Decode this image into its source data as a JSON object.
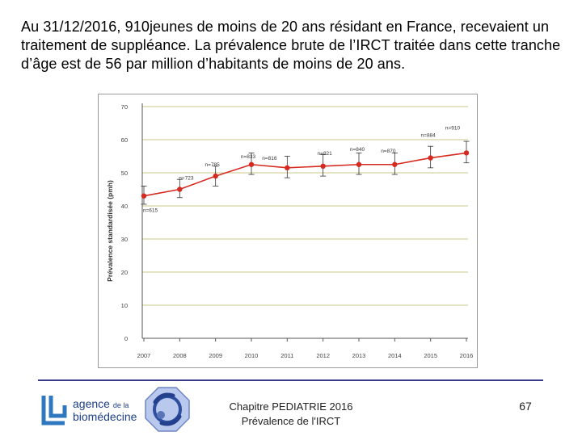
{
  "slide": {
    "headline": "Au 31/12/2016, 910jeunes de moins de 20 ans résidant en France, recevaient un traitement de suppléance. La prévalence brute de l’IRCT traitée dans cette tranche d’âge est de 56 par million d’habitants de moins de 20 ans."
  },
  "footer": {
    "chapter": "Chapitre PEDIATRIE 2016",
    "subtitle": "Prévalence de l'IRCT",
    "page_number": "67",
    "logo_line1": "agence",
    "logo_line1_small": "de la",
    "logo_line2": "biomédecine"
  },
  "colors": {
    "series": "#d62a20",
    "grid": "#c9c98a",
    "axis": "#555555",
    "rule": "#3a3a8a",
    "brand": "#1c3f8a"
  },
  "chart_data": {
    "type": "line",
    "title": "",
    "xlabel": "",
    "ylabel": "Prévalence standardisée (pmh)",
    "ylim": [
      0,
      70
    ],
    "yticks": [
      "0",
      "10",
      "20",
      "30",
      "40",
      "50",
      "60",
      "70"
    ],
    "grid": true,
    "categories": [
      "2007",
      "2008",
      "2009",
      "2010",
      "2011",
      "2012",
      "2013",
      "2014",
      "2015",
      "2016"
    ],
    "series": [
      {
        "name": "Prévalence standardisée",
        "values": [
          43,
          45,
          49,
          52.5,
          51.5,
          52,
          52.5,
          52.5,
          54.5,
          56
        ],
        "error_low": [
          40.5,
          42.5,
          46,
          49.5,
          48.5,
          49,
          49.5,
          49.5,
          51.5,
          53
        ],
        "error_high": [
          46,
          48,
          52,
          56,
          55,
          55.5,
          56,
          56,
          58,
          59.5
        ],
        "labels": [
          "n=615",
          "n=723",
          "n=785",
          "n=833",
          "n=816",
          "n=821",
          "n=840",
          "n=870",
          "n=884",
          "n=910"
        ]
      }
    ]
  }
}
